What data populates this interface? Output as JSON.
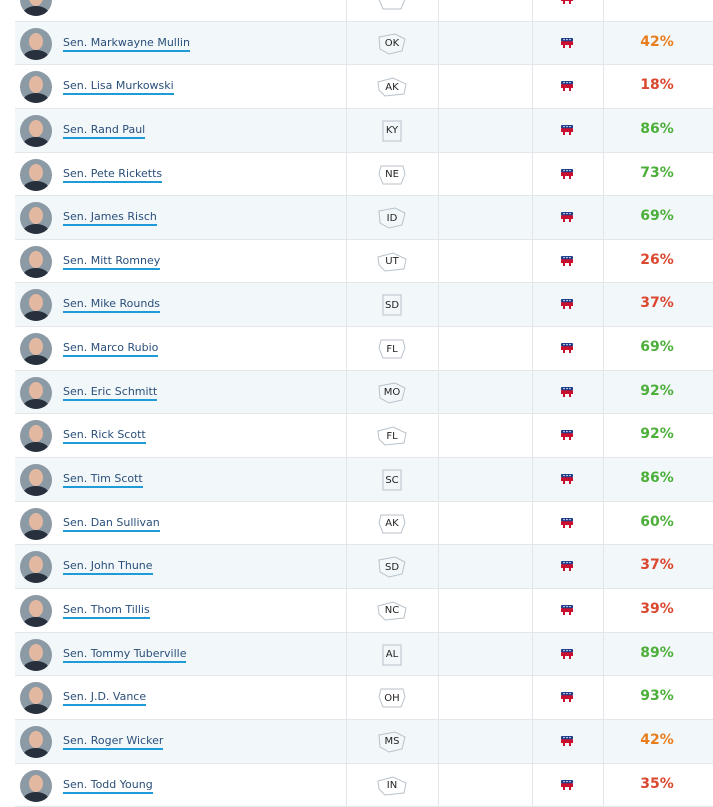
{
  "senators": [
    {
      "name": "",
      "state": "",
      "party_icon": "republican-elephant-icon",
      "score": "",
      "score_color": "#d9482f"
    },
    {
      "name": "Sen. Markwayne Mullin",
      "state": "OK",
      "party_icon": "republican-elephant-icon",
      "score": "42%",
      "score_color": "#e87d1e"
    },
    {
      "name": "Sen. Lisa Murkowski",
      "state": "AK",
      "party_icon": "republican-elephant-icon",
      "score": "18%",
      "score_color": "#d9482f"
    },
    {
      "name": "Sen. Rand Paul",
      "state": "KY",
      "party_icon": "republican-elephant-icon",
      "score": "86%",
      "score_color": "#4caf3a"
    },
    {
      "name": "Sen. Pete Ricketts",
      "state": "NE",
      "party_icon": "republican-elephant-icon",
      "score": "73%",
      "score_color": "#4caf3a"
    },
    {
      "name": "Sen. James Risch",
      "state": "ID",
      "party_icon": "republican-elephant-icon",
      "score": "69%",
      "score_color": "#4caf3a"
    },
    {
      "name": "Sen. Mitt Romney",
      "state": "UT",
      "party_icon": "republican-elephant-icon",
      "score": "26%",
      "score_color": "#d9482f"
    },
    {
      "name": "Sen. Mike Rounds",
      "state": "SD",
      "party_icon": "republican-elephant-icon",
      "score": "37%",
      "score_color": "#d9482f"
    },
    {
      "name": "Sen. Marco Rubio",
      "state": "FL",
      "party_icon": "republican-elephant-icon",
      "score": "69%",
      "score_color": "#4caf3a"
    },
    {
      "name": "Sen. Eric Schmitt",
      "state": "MO",
      "party_icon": "republican-elephant-icon",
      "score": "92%",
      "score_color": "#4caf3a"
    },
    {
      "name": "Sen. Rick Scott",
      "state": "FL",
      "party_icon": "republican-elephant-icon",
      "score": "92%",
      "score_color": "#4caf3a"
    },
    {
      "name": "Sen. Tim Scott",
      "state": "SC",
      "party_icon": "republican-elephant-icon",
      "score": "86%",
      "score_color": "#4caf3a"
    },
    {
      "name": "Sen. Dan Sullivan",
      "state": "AK",
      "party_icon": "republican-elephant-icon",
      "score": "60%",
      "score_color": "#4caf3a"
    },
    {
      "name": "Sen. John Thune",
      "state": "SD",
      "party_icon": "republican-elephant-icon",
      "score": "37%",
      "score_color": "#d9482f"
    },
    {
      "name": "Sen. Thom Tillis",
      "state": "NC",
      "party_icon": "republican-elephant-icon",
      "score": "39%",
      "score_color": "#d9482f"
    },
    {
      "name": "Sen. Tommy Tuberville",
      "state": "AL",
      "party_icon": "republican-elephant-icon",
      "score": "89%",
      "score_color": "#4caf3a"
    },
    {
      "name": "Sen. J.D. Vance",
      "state": "OH",
      "party_icon": "republican-elephant-icon",
      "score": "93%",
      "score_color": "#4caf3a"
    },
    {
      "name": "Sen. Roger Wicker",
      "state": "MS",
      "party_icon": "republican-elephant-icon",
      "score": "42%",
      "score_color": "#e87d1e"
    },
    {
      "name": "Sen. Todd Young",
      "state": "IN",
      "party_icon": "republican-elephant-icon",
      "score": "35%",
      "score_color": "#d9482f"
    }
  ]
}
